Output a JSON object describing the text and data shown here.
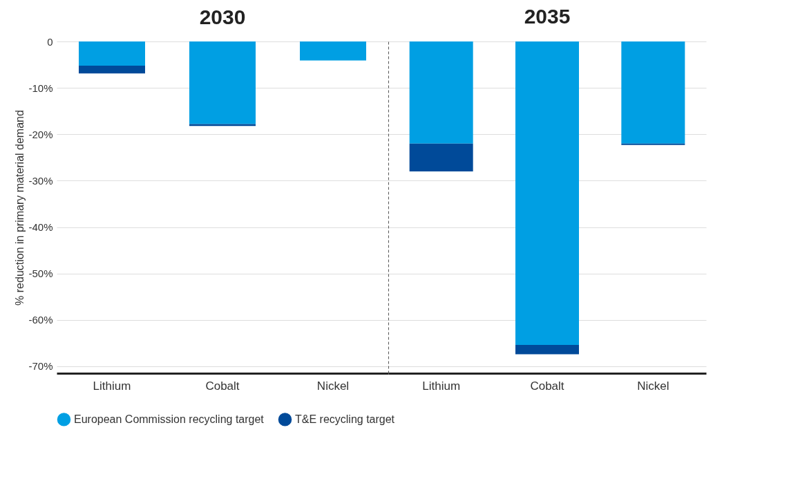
{
  "chart_data": [
    {
      "type": "bar",
      "title": "2030",
      "ylabel": "% reduction in primary material demand",
      "categories": [
        "Lithium",
        "Cobalt",
        "Nickel"
      ],
      "stacked": true,
      "grid": "y",
      "legend": "bottom",
      "ylim": [
        -71.5,
        0
      ],
      "yticks": [
        0,
        {
          "value": -10,
          "label": "-10%"
        },
        {
          "value": -20,
          "label": "-20%"
        },
        {
          "value": -30,
          "label": "-30%"
        },
        {
          "value": -40,
          "label": "-40%"
        },
        {
          "value": -50,
          "label": "-50%"
        },
        {
          "value": -60,
          "label": "-60%"
        },
        {
          "value": -70,
          "label": "-70%"
        }
      ],
      "series": [
        {
          "name": "European Commission recycling target",
          "color": "#009fe3",
          "values": [
            -5.2,
            -17.8,
            -4.1
          ]
        },
        {
          "name": "T&E recycling target",
          "color": "#004a99",
          "values": [
            -1.7,
            -0.4,
            null
          ]
        }
      ]
    },
    {
      "type": "bar",
      "title": "2035",
      "categories": [
        "Lithium",
        "Cobalt",
        "Nickel"
      ],
      "stacked": true,
      "grid": "y",
      "legend": "bottom",
      "tick_labels": "x",
      "ylim": [
        -71.5,
        0
      ],
      "yticks": [
        {
          "value": 0,
          "label": null
        },
        {
          "value": -10,
          "label": null
        },
        {
          "value": -20,
          "label": null
        },
        {
          "value": -30,
          "label": null
        },
        {
          "value": -40,
          "label": null
        },
        {
          "value": -50,
          "label": null
        },
        {
          "value": -60,
          "label": null
        },
        {
          "value": -70,
          "label": null
        }
      ],
      "series": [
        {
          "name": "European Commission recycling target",
          "color": "#009fe3",
          "values": [
            -22,
            -65.4,
            -22
          ]
        },
        {
          "name": "T&E recycling target",
          "color": "#004a99",
          "values": [
            -6,
            -2,
            -0.3
          ]
        }
      ]
    }
  ]
}
